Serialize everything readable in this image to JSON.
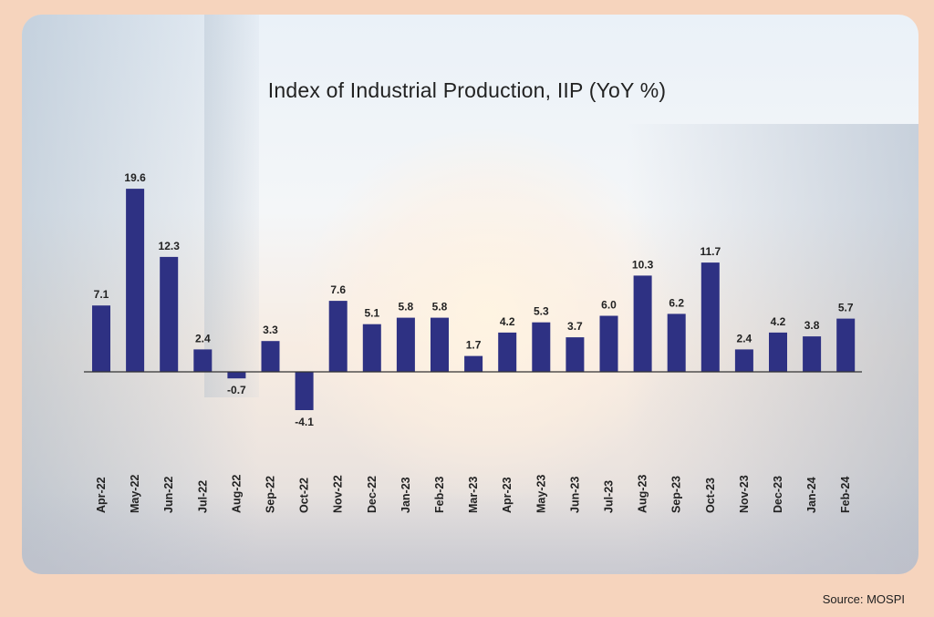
{
  "chart_data": {
    "type": "bar",
    "title": "Index of Industrial Production, IIP (YoY %)",
    "categories": [
      "Apr-22",
      "May-22",
      "Jun-22",
      "Jul-22",
      "Aug-22",
      "Sep-22",
      "Oct-22",
      "Nov-22",
      "Dec-22",
      "Jan-23",
      "Feb-23",
      "Mar-23",
      "Apr-23",
      "May-23",
      "Jun-23",
      "Jul-23",
      "Aug-23",
      "Sep-23",
      "Oct-23",
      "Nov-23",
      "Dec-23",
      "Jan-24",
      "Feb-24"
    ],
    "values": [
      7.1,
      19.6,
      12.3,
      2.4,
      -0.7,
      3.3,
      -4.1,
      7.6,
      5.1,
      5.8,
      5.8,
      1.7,
      4.2,
      5.3,
      3.7,
      6.0,
      10.3,
      6.2,
      11.7,
      2.4,
      4.2,
      3.8,
      5.7
    ],
    "value_labels": [
      "7.1",
      "19.6",
      "12.3",
      "2.4",
      "-0.7",
      "3.3",
      "-4.1",
      "7.6",
      "5.1",
      "5.8",
      "5.8",
      "1.7",
      "4.2",
      "5.3",
      "3.7",
      "6.0",
      "10.3",
      "6.2",
      "11.7",
      "2.4",
      "4.2",
      "3.8",
      "5.7"
    ],
    "xlabel": "",
    "ylabel": "",
    "bar_color": "#2e3183",
    "grid": false,
    "legend": "none"
  },
  "source": "Source: MOSPI"
}
